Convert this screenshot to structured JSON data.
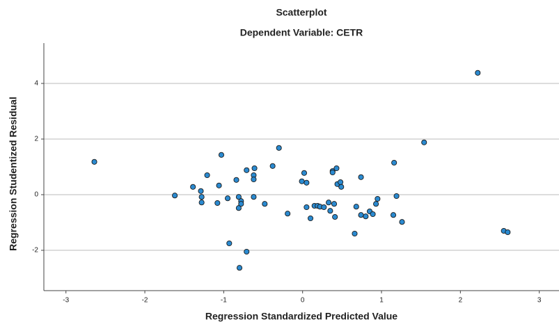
{
  "chart_data": {
    "type": "scatter",
    "title": "Scatterplot",
    "subtitle": "Dependent Variable: CETR",
    "x_label": "Regression Standardized Predicted Value",
    "y_label": "Regression Studentized Residual",
    "x": [
      -2.64,
      -1.62,
      -1.39,
      -1.29,
      -1.28,
      -1.28,
      -1.21,
      -1.08,
      -1.06,
      -1.03,
      -0.95,
      -0.93,
      -0.84,
      -0.81,
      -0.81,
      -0.8,
      -0.78,
      -0.78,
      -0.71,
      -0.71,
      -0.61,
      -0.62,
      -0.62,
      -0.62,
      -0.48,
      -0.38,
      -0.3,
      -0.19,
      -0.01,
      0.02,
      0.05,
      0.05,
      0.1,
      0.15,
      0.19,
      0.22,
      0.27,
      0.33,
      0.35,
      0.38,
      0.38,
      0.4,
      0.41,
      0.43,
      0.44,
      0.48,
      0.49,
      0.68,
      0.74,
      0.74,
      0.8,
      0.85,
      0.89,
      0.93,
      0.95,
      0.66,
      1.16,
      1.15,
      1.19,
      1.26,
      1.54,
      2.22,
      2.55,
      2.6
    ],
    "values": [
      1.18,
      -0.03,
      0.28,
      0.13,
      -0.08,
      -0.28,
      0.7,
      -0.3,
      0.33,
      1.43,
      -0.13,
      -1.75,
      0.53,
      -0.08,
      -0.48,
      -2.63,
      -0.23,
      -0.33,
      0.88,
      -2.05,
      0.95,
      0.7,
      0.55,
      -0.08,
      -0.33,
      1.03,
      1.68,
      -0.68,
      0.48,
      0.78,
      0.43,
      -0.45,
      -0.85,
      -0.4,
      -0.4,
      -0.43,
      -0.45,
      -0.28,
      -0.58,
      0.85,
      0.8,
      -0.33,
      -0.8,
      0.95,
      0.38,
      0.45,
      0.28,
      -0.43,
      0.63,
      -0.73,
      -0.78,
      -0.6,
      -0.7,
      -0.33,
      -0.15,
      -1.4,
      1.15,
      -0.73,
      -0.05,
      -0.98,
      1.88,
      4.38,
      -1.3,
      -1.35
    ],
    "color": "#2b8ad0",
    "xlim": [
      -3.28,
      3.25
    ],
    "ylim": [
      -3.45,
      5.45
    ],
    "xticks": [
      -3,
      -2,
      -1,
      0,
      1,
      2,
      3
    ],
    "yticks": [
      -2,
      0,
      2,
      4
    ],
    "grid": true
  }
}
